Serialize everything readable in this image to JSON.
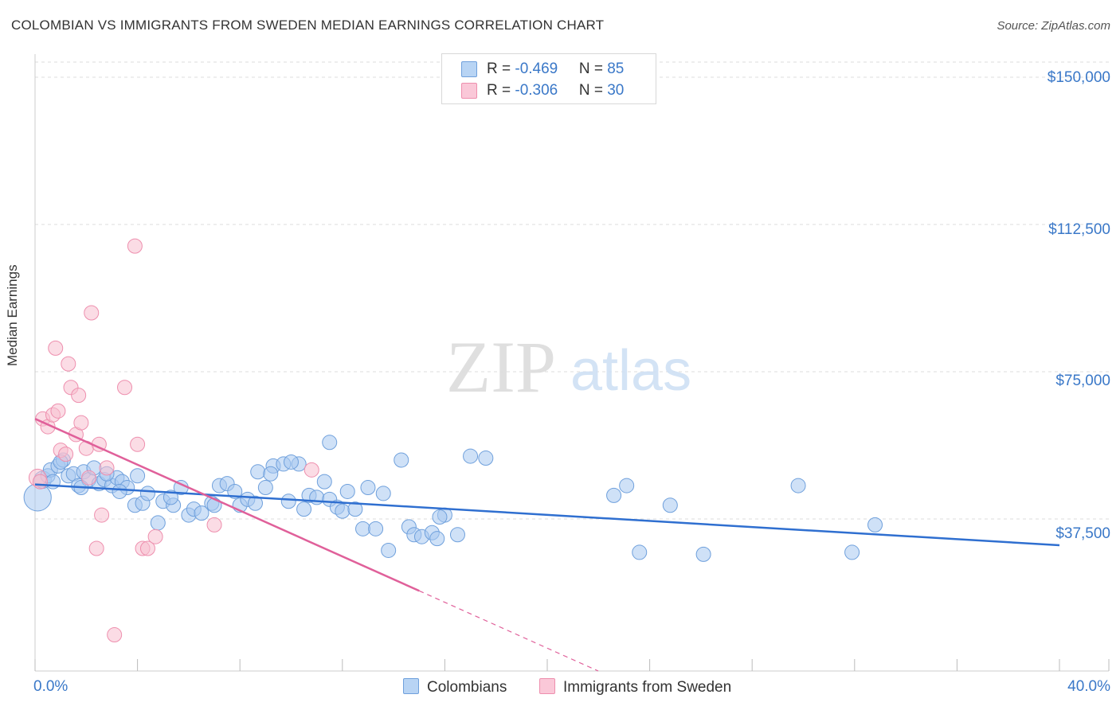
{
  "title": "COLOMBIAN VS IMMIGRANTS FROM SWEDEN MEDIAN EARNINGS CORRELATION CHART",
  "source": "Source: ZipAtlas.com",
  "watermark": {
    "part1": "ZIP",
    "part2": "atlas"
  },
  "legend": {
    "rows": [
      {
        "r_label": "R = ",
        "r_value": "-0.469",
        "n_label": "N = ",
        "n_value": "85"
      },
      {
        "r_label": "R = ",
        "r_value": "-0.306",
        "n_label": "N = ",
        "n_value": "30"
      }
    ]
  },
  "bottom_legend": {
    "series1": "Colombians",
    "series2": "Immigrants from Sweden"
  },
  "axes": {
    "x_min_label": "0.0%",
    "x_max_label": "40.0%",
    "y_ticks": [
      "$150,000",
      "$112,500",
      "$75,000",
      "$37,500"
    ],
    "ylabel": "Median Earnings"
  },
  "colors": {
    "blue_fill": "#a8c8f0",
    "blue_stroke": "#6fa0dc",
    "blue_line": "#2f6fd0",
    "pink_fill": "#f7bfd0",
    "pink_stroke": "#ee8fae",
    "pink_line": "#e0609a",
    "accent_text": "#3a78c8"
  },
  "chart_data": {
    "type": "scatter",
    "title": "COLOMBIAN VS IMMIGRANTS FROM SWEDEN MEDIAN EARNINGS CORRELATION CHART",
    "xlabel": "",
    "ylabel": "Median Earnings",
    "xlim": [
      0,
      40
    ],
    "ylim": [
      0,
      155000
    ],
    "y_ticks": [
      37500,
      75000,
      112500,
      150000
    ],
    "grid": true,
    "series": [
      {
        "name": "Colombians",
        "color": "blue",
        "trend": {
          "x": [
            0,
            40
          ],
          "y": [
            46300,
            30800
          ],
          "dash_from": null
        },
        "points": [
          [
            0.1,
            43000,
            1.9
          ],
          [
            0.3,
            47500,
            1.2
          ],
          [
            0.5,
            48500,
            1
          ],
          [
            0.6,
            50000,
            1
          ],
          [
            0.9,
            51000,
            1
          ],
          [
            1.1,
            52500,
            1
          ],
          [
            1.3,
            48500,
            1
          ],
          [
            1.5,
            49000,
            1
          ],
          [
            1.7,
            46000,
            1
          ],
          [
            1.9,
            49500,
            1
          ],
          [
            2.1,
            47500,
            1
          ],
          [
            2.3,
            50500,
            1
          ],
          [
            2.5,
            46500,
            1
          ],
          [
            2.7,
            47500,
            1
          ],
          [
            3.0,
            46000,
            1
          ],
          [
            3.2,
            48000,
            1
          ],
          [
            3.4,
            47000,
            1
          ],
          [
            3.6,
            45500,
            1
          ],
          [
            3.9,
            41000,
            1
          ],
          [
            4.2,
            41500,
            1
          ],
          [
            4.4,
            44000,
            1
          ],
          [
            4.8,
            36500,
            1
          ],
          [
            5.0,
            42000,
            1
          ],
          [
            5.4,
            41000,
            1
          ],
          [
            5.7,
            45500,
            1
          ],
          [
            6.0,
            38500,
            1
          ],
          [
            6.2,
            40000,
            1
          ],
          [
            6.5,
            39000,
            1
          ],
          [
            6.9,
            41500,
            1
          ],
          [
            7.2,
            46000,
            1
          ],
          [
            7.5,
            46500,
            1
          ],
          [
            7.8,
            44500,
            1
          ],
          [
            8.0,
            41000,
            1
          ],
          [
            8.3,
            42500,
            1
          ],
          [
            8.7,
            49500,
            1
          ],
          [
            9.0,
            45500,
            1
          ],
          [
            9.3,
            51000,
            1
          ],
          [
            9.7,
            51500,
            1
          ],
          [
            9.9,
            42000,
            1
          ],
          [
            10.3,
            51500,
            1
          ],
          [
            10.5,
            40000,
            1
          ],
          [
            10.7,
            43500,
            1
          ],
          [
            11.0,
            43000,
            1
          ],
          [
            11.3,
            47000,
            1
          ],
          [
            11.5,
            42500,
            1
          ],
          [
            11.8,
            40500,
            1
          ],
          [
            12.0,
            39500,
            1
          ],
          [
            12.5,
            40000,
            1
          ],
          [
            12.8,
            35000,
            1
          ],
          [
            13.0,
            45500,
            1
          ],
          [
            13.3,
            35000,
            1
          ],
          [
            13.6,
            44000,
            1
          ],
          [
            13.8,
            29500,
            1
          ],
          [
            14.3,
            52500,
            1
          ],
          [
            14.6,
            35500,
            1
          ],
          [
            14.8,
            33500,
            1
          ],
          [
            15.1,
            33000,
            1
          ],
          [
            15.5,
            34000,
            1
          ],
          [
            15.7,
            32500,
            1
          ],
          [
            16.0,
            38500,
            1
          ],
          [
            16.5,
            33500,
            1
          ],
          [
            17.0,
            53500,
            1
          ],
          [
            17.6,
            53000,
            1
          ],
          [
            11.5,
            57000,
            1
          ],
          [
            1.0,
            52000,
            1
          ],
          [
            2.8,
            49000,
            1
          ],
          [
            4.0,
            48500,
            1
          ],
          [
            7.0,
            41000,
            1
          ],
          [
            9.2,
            49000,
            1
          ],
          [
            10.0,
            52000,
            1
          ],
          [
            12.2,
            44500,
            1
          ],
          [
            15.8,
            38000,
            1
          ],
          [
            22.6,
            43500,
            1
          ],
          [
            23.1,
            46000,
            1
          ],
          [
            23.6,
            29000,
            1
          ],
          [
            24.8,
            41000,
            1
          ],
          [
            26.1,
            28500,
            1
          ],
          [
            29.8,
            46000,
            1
          ],
          [
            31.9,
            29000,
            1
          ],
          [
            32.8,
            36000,
            1
          ],
          [
            0.7,
            47000,
            1
          ],
          [
            1.8,
            45500,
            1
          ],
          [
            3.3,
            44500,
            1
          ],
          [
            5.3,
            43000,
            1
          ],
          [
            8.6,
            41500,
            1
          ]
        ]
      },
      {
        "name": "Immigrants from Sweden",
        "color": "pink",
        "trend": {
          "x": [
            0,
            25
          ],
          "y": [
            63000,
            -10000
          ],
          "dash_from": 15
        },
        "points": [
          [
            0.1,
            48000,
            1.2
          ],
          [
            0.3,
            63000,
            1
          ],
          [
            0.5,
            61000,
            1
          ],
          [
            0.7,
            64000,
            1
          ],
          [
            0.8,
            81000,
            1
          ],
          [
            0.9,
            65000,
            1
          ],
          [
            1.0,
            55000,
            1
          ],
          [
            1.2,
            54000,
            1
          ],
          [
            1.3,
            77000,
            1
          ],
          [
            1.4,
            71000,
            1
          ],
          [
            1.6,
            59000,
            1
          ],
          [
            1.7,
            69000,
            1
          ],
          [
            1.8,
            62000,
            1
          ],
          [
            2.0,
            55500,
            1
          ],
          [
            2.1,
            48000,
            1
          ],
          [
            2.2,
            90000,
            1
          ],
          [
            2.4,
            30000,
            1
          ],
          [
            2.5,
            56500,
            1
          ],
          [
            2.6,
            38500,
            1
          ],
          [
            2.8,
            50500,
            1
          ],
          [
            3.1,
            8000,
            1
          ],
          [
            3.5,
            71000,
            1
          ],
          [
            3.9,
            107000,
            1
          ],
          [
            4.0,
            56500,
            1
          ],
          [
            4.2,
            30000,
            1
          ],
          [
            4.4,
            30000,
            1
          ],
          [
            4.7,
            33000,
            1
          ],
          [
            7.0,
            36000,
            1
          ],
          [
            10.8,
            50000,
            1
          ],
          [
            0.2,
            47000,
            1
          ]
        ]
      }
    ]
  }
}
